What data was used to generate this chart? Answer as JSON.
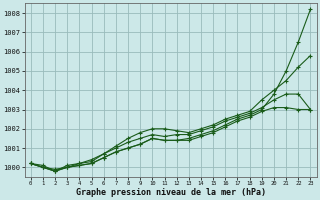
{
  "xlabel": "Graphe pression niveau de la mer (hPa)",
  "background_color": "#cce8e8",
  "grid_color": "#99bbbb",
  "line_color": "#1a5c1a",
  "xlim": [
    0,
    23
  ],
  "ylim": [
    999.5,
    1008.5
  ],
  "yticks": [
    1000,
    1001,
    1002,
    1003,
    1004,
    1005,
    1006,
    1007,
    1008
  ],
  "xticks": [
    0,
    1,
    2,
    3,
    4,
    5,
    6,
    7,
    8,
    9,
    10,
    11,
    12,
    13,
    14,
    15,
    16,
    17,
    18,
    19,
    20,
    21,
    22,
    23
  ],
  "series": [
    [
      1000.2,
      1000.1,
      999.8,
      1000.0,
      1000.1,
      1000.2,
      1000.5,
      1000.8,
      1001.0,
      1001.2,
      1001.5,
      1001.4,
      1001.4,
      1001.5,
      1001.7,
      1001.9,
      1002.2,
      1002.5,
      1002.7,
      1003.0,
      1003.8,
      1005.0,
      1006.5,
      1008.2
    ],
    [
      1000.2,
      1000.0,
      999.8,
      1000.1,
      1000.2,
      1000.3,
      1000.7,
      1001.1,
      1001.5,
      1001.8,
      1002.0,
      1002.0,
      1001.9,
      1001.8,
      1002.0,
      1002.2,
      1002.5,
      1002.7,
      1002.9,
      1003.5,
      1004.0,
      1004.5,
      1005.2,
      1005.8
    ],
    [
      1000.2,
      1000.0,
      999.9,
      1000.0,
      1000.2,
      1000.4,
      1000.7,
      1001.0,
      1001.3,
      1001.5,
      1001.7,
      1001.6,
      1001.7,
      1001.7,
      1001.9,
      1002.1,
      1002.4,
      1002.6,
      1002.8,
      1003.1,
      1003.5,
      1003.8,
      1003.8,
      1003.0
    ],
    [
      1000.2,
      1000.0,
      999.8,
      1000.0,
      1000.1,
      1000.2,
      1000.5,
      1000.8,
      1001.0,
      1001.2,
      1001.5,
      1001.4,
      1001.4,
      1001.4,
      1001.6,
      1001.8,
      1002.1,
      1002.4,
      1002.6,
      1002.9,
      1003.1,
      1003.1,
      1003.0,
      1003.0
    ]
  ]
}
